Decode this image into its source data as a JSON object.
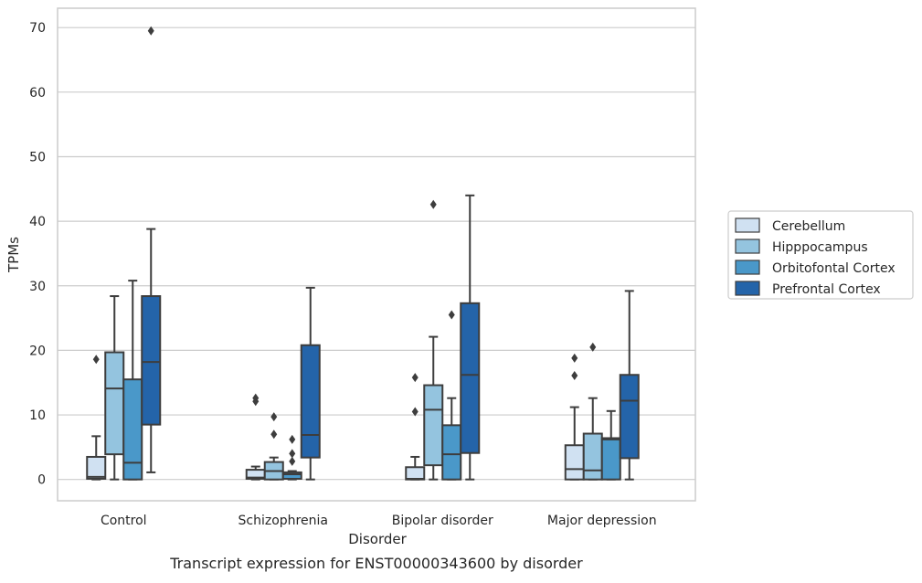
{
  "chart_data": {
    "type": "boxplot",
    "title": "",
    "caption": "Transcript expression for ENST00000343600 by disorder",
    "xlabel": "Disorder",
    "ylabel": "TPMs",
    "ylim": [
      -3.3,
      73.0
    ],
    "yticks": [
      0,
      10,
      20,
      30,
      40,
      50,
      60,
      70
    ],
    "grid": "horizontal",
    "legend_position": "right, vertically centered",
    "categories": [
      "Control",
      "Schizophrenia",
      "Bipolar disorder",
      "Major depression"
    ],
    "series": [
      {
        "name": "Cerebellum",
        "color": "#d0e1f2",
        "boxes": [
          {
            "whisker_low": 0,
            "q1": 0.1,
            "median": 0.4,
            "q3": 3.5,
            "whisker_high": 6.7,
            "outliers": [
              18.6
            ]
          },
          {
            "whisker_low": 0,
            "q1": 0.1,
            "median": 0.3,
            "q3": 1.5,
            "whisker_high": 2.0,
            "outliers": [
              12.1,
              12.6
            ]
          },
          {
            "whisker_low": 0,
            "q1": 0.0,
            "median": 0.1,
            "q3": 1.9,
            "whisker_high": 3.5,
            "outliers": [
              10.5,
              15.8
            ]
          },
          {
            "whisker_low": 0,
            "q1": 0.0,
            "median": 1.6,
            "q3": 5.3,
            "whisker_high": 11.2,
            "outliers": [
              16.1,
              18.8
            ]
          }
        ]
      },
      {
        "name": "Hipppocampus",
        "color": "#94c4df",
        "boxes": [
          {
            "whisker_low": 0,
            "q1": 3.9,
            "median": 14.1,
            "q3": 19.7,
            "whisker_high": 28.4,
            "outliers": []
          },
          {
            "whisker_low": 0,
            "q1": 0.0,
            "median": 1.3,
            "q3": 2.7,
            "whisker_high": 3.4,
            "outliers": [
              7.0,
              9.7
            ]
          },
          {
            "whisker_low": 0,
            "q1": 2.2,
            "median": 10.8,
            "q3": 14.6,
            "whisker_high": 22.1,
            "outliers": [
              42.6
            ]
          },
          {
            "whisker_low": 0,
            "q1": 0.0,
            "median": 1.4,
            "q3": 7.1,
            "whisker_high": 12.6,
            "outliers": [
              20.5
            ]
          }
        ]
      },
      {
        "name": "Orbitofontal Cortex",
        "color": "#4a98c9",
        "boxes": [
          {
            "whisker_low": 0,
            "q1": 0.0,
            "median": 2.6,
            "q3": 15.5,
            "whisker_high": 30.8,
            "outliers": []
          },
          {
            "whisker_low": 0,
            "q1": 0.1,
            "median": 0.8,
            "q3": 1.1,
            "whisker_high": 1.3,
            "outliers": [
              2.8,
              4.0,
              6.2
            ]
          },
          {
            "whisker_low": 0,
            "q1": 0.0,
            "median": 3.9,
            "q3": 8.4,
            "whisker_high": 12.6,
            "outliers": [
              25.5
            ]
          },
          {
            "whisker_low": 0,
            "q1": 0.0,
            "median": 6.2,
            "q3": 6.4,
            "whisker_high": 10.6,
            "outliers": []
          }
        ]
      },
      {
        "name": "Prefrontal Cortex",
        "color": "#2464a9",
        "boxes": [
          {
            "whisker_low": 1.1,
            "q1": 8.5,
            "median": 18.2,
            "q3": 28.4,
            "whisker_high": 38.8,
            "outliers": [
              69.5
            ]
          },
          {
            "whisker_low": 0,
            "q1": 3.4,
            "median": 6.9,
            "q3": 20.8,
            "whisker_high": 29.7,
            "outliers": []
          },
          {
            "whisker_low": 0,
            "q1": 4.1,
            "median": 16.2,
            "q3": 27.3,
            "whisker_high": 44.0,
            "outliers": []
          },
          {
            "whisker_low": 0,
            "q1": 3.3,
            "median": 12.2,
            "q3": 16.2,
            "whisker_high": 29.2,
            "outliers": []
          }
        ]
      }
    ]
  }
}
